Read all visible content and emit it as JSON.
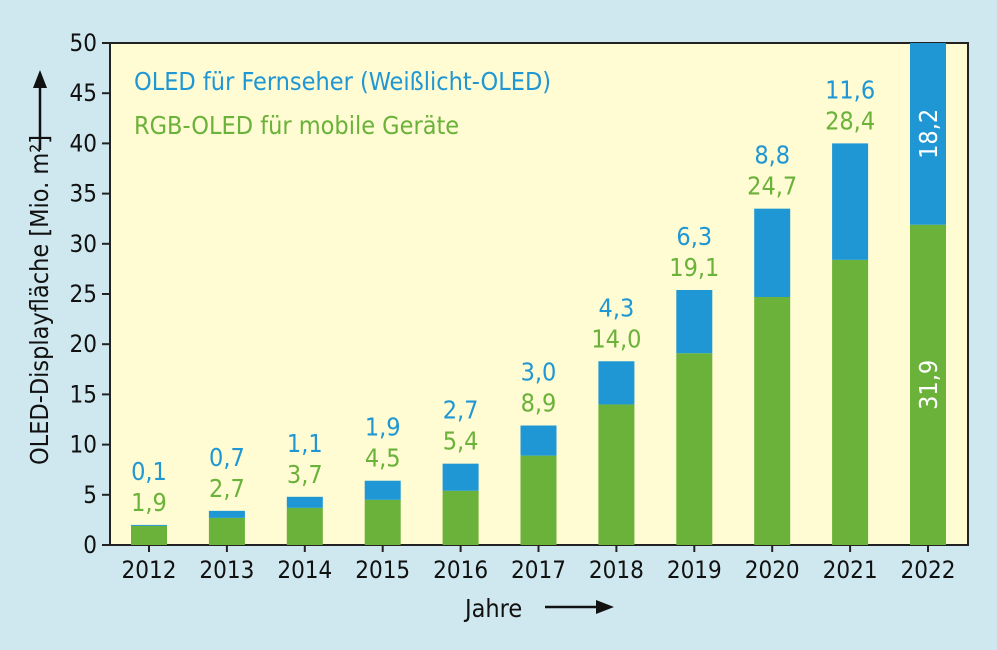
{
  "chart_data": {
    "type": "bar",
    "stacked": true,
    "categories": [
      "2012",
      "2013",
      "2014",
      "2015",
      "2016",
      "2017",
      "2018",
      "2019",
      "2020",
      "2021",
      "2022"
    ],
    "series": [
      {
        "name": "RGB-OLED für mobile Geräte",
        "color": "#6ab23a",
        "values": [
          1.9,
          2.7,
          3.7,
          4.5,
          5.4,
          8.9,
          14.0,
          19.1,
          24.7,
          28.4,
          31.9
        ],
        "labels": [
          "1,9",
          "2,7",
          "3,7",
          "4,5",
          "5,4",
          "8,9",
          "14,0",
          "19,1",
          "24,7",
          "28,4",
          "31,9"
        ]
      },
      {
        "name": "OLED für Fernseher (Weißlicht-OLED)",
        "color": "#1f97d4",
        "values": [
          0.1,
          0.7,
          1.1,
          1.9,
          2.7,
          3.0,
          4.3,
          6.3,
          8.8,
          11.6,
          18.2
        ],
        "labels": [
          "0,1",
          "0,7",
          "1,1",
          "1,9",
          "2,7",
          "3,0",
          "4,3",
          "6,3",
          "8,8",
          "11,6",
          "18,2"
        ]
      }
    ],
    "title": "",
    "xlabel": "Jahre",
    "ylabel": "OLED-Displayfläche [Mio. m²]",
    "ylim": [
      0,
      50
    ],
    "yticks": [
      0,
      5,
      10,
      15,
      20,
      25,
      30,
      35,
      40,
      45,
      50
    ],
    "grid": false,
    "legend_position": "top-left",
    "plot_background": "#fffbd2",
    "page_background": "#cfe8ef"
  }
}
